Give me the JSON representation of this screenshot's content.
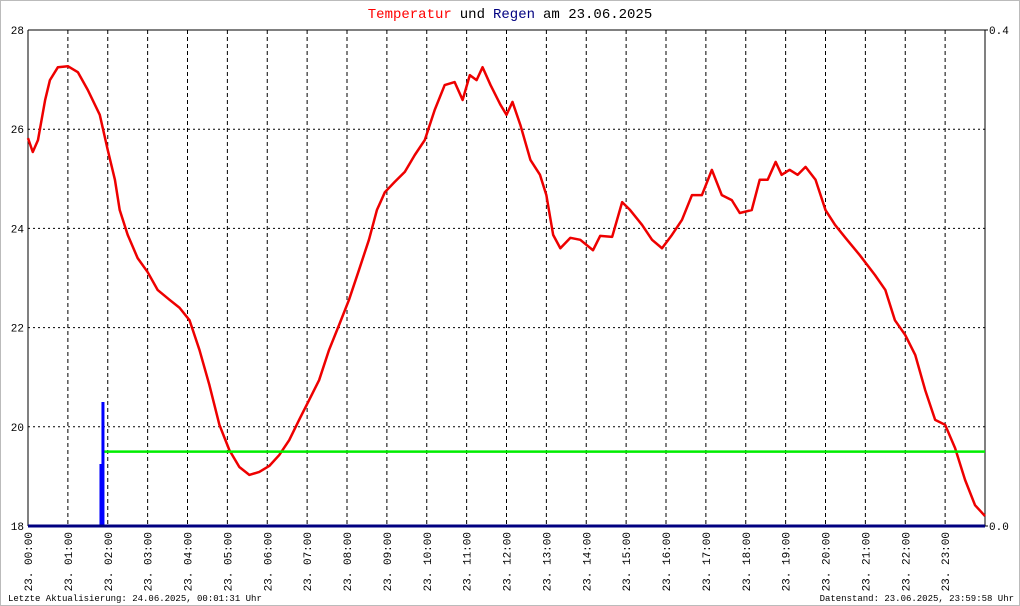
{
  "chart_data": {
    "type": "line",
    "title_parts": [
      "Temperatur",
      "und",
      "Regen",
      "am 23.06.2025"
    ],
    "title_colors": [
      "#ff0000",
      "#000000",
      "#000080",
      "#000000"
    ],
    "footer_left": "Letzte Aktualisierung: 24.06.2025, 00:01:31 Uhr",
    "footer_right": "Datenstand: 23.06.2025, 23:59:58 Uhr",
    "xlim": [
      0,
      24
    ],
    "xticks": [
      {
        "value": 0,
        "label": "23. 00:00"
      },
      {
        "value": 1,
        "label": "23. 01:00"
      },
      {
        "value": 2,
        "label": "23. 02:00"
      },
      {
        "value": 3,
        "label": "23. 03:00"
      },
      {
        "value": 4,
        "label": "23. 04:00"
      },
      {
        "value": 5,
        "label": "23. 05:00"
      },
      {
        "value": 6,
        "label": "23. 06:00"
      },
      {
        "value": 7,
        "label": "23. 07:00"
      },
      {
        "value": 8,
        "label": "23. 08:00"
      },
      {
        "value": 9,
        "label": "23. 09:00"
      },
      {
        "value": 10,
        "label": "23. 10:00"
      },
      {
        "value": 11,
        "label": "23. 11:00"
      },
      {
        "value": 12,
        "label": "23. 12:00"
      },
      {
        "value": 13,
        "label": "23. 13:00"
      },
      {
        "value": 14,
        "label": "23. 14:00"
      },
      {
        "value": 15,
        "label": "23. 15:00"
      },
      {
        "value": 16,
        "label": "23. 16:00"
      },
      {
        "value": 17,
        "label": "23. 17:00"
      },
      {
        "value": 18,
        "label": "23. 18:00"
      },
      {
        "value": 19,
        "label": "23. 19:00"
      },
      {
        "value": 20,
        "label": "23. 20:00"
      },
      {
        "value": 21,
        "label": "23. 21:00"
      },
      {
        "value": 22,
        "label": "23. 22:00"
      },
      {
        "value": 23,
        "label": "23. 23:00"
      }
    ],
    "ylim": [
      18,
      28
    ],
    "yticks": [
      18,
      20,
      22,
      24,
      26,
      28
    ],
    "y2lim": [
      0,
      0.4
    ],
    "y2ticks": [
      {
        "value": 0,
        "label": "0.0"
      },
      {
        "value": 0.4,
        "label": "0.4"
      }
    ],
    "grid": true,
    "series": [
      {
        "color": "#ee0000",
        "x": [
          0,
          0.12,
          0.25,
          0.43,
          0.55,
          0.75,
          1.0,
          1.25,
          1.5,
          1.8,
          2.0,
          2.18,
          2.3,
          2.5,
          2.75,
          3.0,
          3.25,
          3.55,
          3.8,
          4.05,
          4.3,
          4.55,
          4.8,
          5.05,
          5.3,
          5.55,
          5.8,
          6.05,
          6.3,
          6.55,
          6.8,
          7.05,
          7.3,
          7.55,
          7.8,
          8.05,
          8.3,
          8.55,
          8.75,
          8.95,
          9.2,
          9.45,
          9.7,
          9.95,
          10.2,
          10.45,
          10.7,
          10.9,
          11.08,
          11.25,
          11.4,
          11.6,
          11.85,
          12.0,
          12.15,
          12.35,
          12.6,
          12.84,
          13.0,
          13.17,
          13.35,
          13.6,
          13.85,
          14.17,
          14.35,
          14.65,
          14.9,
          15.1,
          15.4,
          15.65,
          15.9,
          16.15,
          16.4,
          16.65,
          16.9,
          17.15,
          17.4,
          17.65,
          17.85,
          18.15,
          18.35,
          18.55,
          18.75,
          18.9,
          19.1,
          19.3,
          19.5,
          19.75,
          20.0,
          20.24,
          20.5,
          20.86,
          21.24,
          21.5,
          21.74,
          22.0,
          22.25,
          22.5,
          22.75,
          23.0,
          23.25,
          23.5,
          23.75,
          24.0
        ],
        "values": [
          25.82,
          25.54,
          25.78,
          26.59,
          26.99,
          27.25,
          27.27,
          27.15,
          26.79,
          26.29,
          25.58,
          24.98,
          24.37,
          23.87,
          23.4,
          23.12,
          22.76,
          22.56,
          22.4,
          22.15,
          21.55,
          20.84,
          20.04,
          19.53,
          19.19,
          19.03,
          19.09,
          19.21,
          19.43,
          19.73,
          20.14,
          20.54,
          20.94,
          21.55,
          22.05,
          22.56,
          23.16,
          23.77,
          24.37,
          24.73,
          24.94,
          25.14,
          25.48,
          25.78,
          26.39,
          26.89,
          26.95,
          26.59,
          27.09,
          26.99,
          27.25,
          26.89,
          26.49,
          26.29,
          26.55,
          26.08,
          25.38,
          25.08,
          24.67,
          23.87,
          23.6,
          23.81,
          23.77,
          23.56,
          23.85,
          23.83,
          24.53,
          24.37,
          24.07,
          23.77,
          23.6,
          23.87,
          24.17,
          24.67,
          24.67,
          25.18,
          24.67,
          24.57,
          24.31,
          24.37,
          24.98,
          24.98,
          25.34,
          25.08,
          25.18,
          25.08,
          25.24,
          24.98,
          24.37,
          24.07,
          23.81,
          23.46,
          23.06,
          22.76,
          22.15,
          21.85,
          21.45,
          20.74,
          20.14,
          20.04,
          19.57,
          18.93,
          18.42,
          18.2
        ]
      },
      {
        "color": "#00ee00",
        "x": [
          1.9,
          24
        ],
        "values": [
          19.5,
          19.5
        ]
      },
      {
        "color": "#0000ff",
        "axis": "y2",
        "kind": "bar",
        "x": [
          1.83,
          1.88
        ],
        "values": [
          0.05,
          0.1
        ]
      }
    ]
  }
}
